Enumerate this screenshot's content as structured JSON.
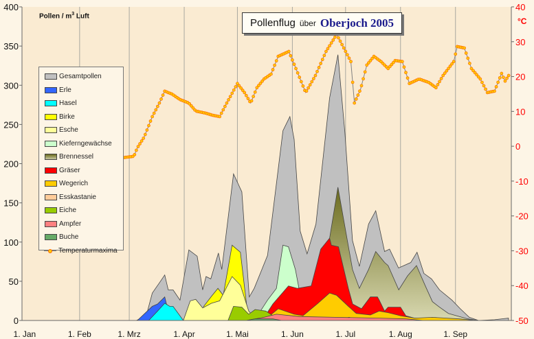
{
  "title": {
    "part1": "Pollenflug",
    "part2": "über",
    "part3": "Oberjoch 2005"
  },
  "chart_data": {
    "type": "area",
    "title": "Pollenflug über Oberjoch 2005",
    "ylabel_left": "Pollen / m3 Luft",
    "ylabel_right": "°C",
    "ylim_left": [
      0,
      400
    ],
    "ylim_right": [
      -50,
      40
    ],
    "yticks_left": [
      0,
      50,
      100,
      150,
      200,
      250,
      300,
      350,
      400
    ],
    "yticks_right": [
      -50,
      -40,
      -30,
      -20,
      -10,
      0,
      10,
      20,
      30,
      40
    ],
    "xlim_days": [
      -1.5,
      274.5
    ],
    "xticks": [
      {
        "label": "1. Jan",
        "day": 0
      },
      {
        "label": "1. Feb",
        "day": 31
      },
      {
        "label": "1. Mrz",
        "day": 59
      },
      {
        "label": "1. Apr",
        "day": 90
      },
      {
        "label": "1. Mai",
        "day": 120
      },
      {
        "label": "1. Jun",
        "day": 151
      },
      {
        "label": "1. Jul",
        "day": 181
      },
      {
        "label": "1. Aug",
        "day": 212
      },
      {
        "label": "1. Sep",
        "day": 243
      }
    ],
    "grid": "vertical at month starts",
    "legend_position": "left",
    "series": [
      {
        "name": "Gesamtpollen",
        "color": "#c0c0c0",
        "points": [
          [
            63,
            0
          ],
          [
            68.6,
            6
          ],
          [
            72,
            35
          ],
          [
            76,
            48
          ],
          [
            79,
            58
          ],
          [
            81,
            39
          ],
          [
            83.7,
            39
          ],
          [
            87.6,
            26
          ],
          [
            92.6,
            90
          ],
          [
            97.3,
            82
          ],
          [
            100.4,
            39
          ],
          [
            102.3,
            56
          ],
          [
            105,
            53
          ],
          [
            109.3,
            86
          ],
          [
            111.2,
            65
          ],
          [
            117.8,
            187
          ],
          [
            122.5,
            164
          ],
          [
            126.7,
            30
          ],
          [
            129.5,
            41
          ],
          [
            137,
            83
          ],
          [
            145.7,
            242
          ],
          [
            149.6,
            260
          ],
          [
            152,
            231
          ],
          [
            155.4,
            114
          ],
          [
            159.3,
            85
          ],
          [
            164.3,
            123
          ],
          [
            172,
            284
          ],
          [
            176.7,
            339
          ],
          [
            180.6,
            240
          ],
          [
            184.9,
            102
          ],
          [
            188.8,
            69
          ],
          [
            194,
            123
          ],
          [
            198,
            140
          ],
          [
            203,
            88
          ],
          [
            205.8,
            91
          ],
          [
            210.9,
            67
          ],
          [
            217.8,
            74
          ],
          [
            221.3,
            87
          ],
          [
            225.2,
            60
          ],
          [
            229.5,
            53
          ],
          [
            234,
            39
          ],
          [
            241,
            26
          ],
          [
            245.7,
            15
          ],
          [
            250.8,
            4
          ],
          [
            256,
            0
          ],
          [
            265,
            1
          ],
          [
            272.9,
            3
          ]
        ]
      },
      {
        "name": "Erle",
        "color": "#3366ff",
        "points": [
          [
            63.6,
            0
          ],
          [
            72,
            18
          ],
          [
            75,
            21
          ],
          [
            79,
            30
          ],
          [
            80,
            21
          ],
          [
            86,
            6
          ],
          [
            88.7,
            0
          ]
        ]
      },
      {
        "name": "Hasel",
        "color": "#00ffff",
        "points": [
          [
            70,
            0
          ],
          [
            75,
            12
          ],
          [
            79,
            22
          ],
          [
            81.8,
            18
          ],
          [
            83.7,
            18
          ],
          [
            89.5,
            0
          ]
        ]
      },
      {
        "name": "Birke",
        "color": "#ffff00",
        "points": [
          [
            99,
            0
          ],
          [
            101,
            18
          ],
          [
            105.4,
            31
          ],
          [
            109,
            41
          ],
          [
            112,
            32
          ],
          [
            117,
            96
          ],
          [
            121.7,
            87
          ],
          [
            125.6,
            12
          ],
          [
            128,
            0
          ]
        ]
      },
      {
        "name": "Esche",
        "color": "#ffff99",
        "points": [
          [
            89.5,
            0
          ],
          [
            93.4,
            25
          ],
          [
            96.5,
            27
          ],
          [
            100.4,
            16
          ],
          [
            105.4,
            22
          ],
          [
            110,
            25
          ],
          [
            117,
            56
          ],
          [
            121.7,
            45
          ],
          [
            126.4,
            12
          ],
          [
            131,
            0
          ]
        ]
      },
      {
        "name": "Kieferngewächse",
        "color": "#ccffcc",
        "points": [
          [
            128,
            0
          ],
          [
            133,
            12
          ],
          [
            137,
            26
          ],
          [
            142,
            41
          ],
          [
            145.7,
            96
          ],
          [
            148.8,
            94
          ],
          [
            152.7,
            65
          ],
          [
            154.7,
            41
          ],
          [
            156,
            5
          ],
          [
            158,
            0
          ]
        ]
      },
      {
        "name": "Brennessel",
        "color": "#808040",
        "points": [
          [
            160,
            0
          ],
          [
            168,
            30
          ],
          [
            172,
            105
          ],
          [
            176.7,
            170
          ],
          [
            180.6,
            120
          ],
          [
            184.9,
            65
          ],
          [
            188.8,
            41
          ],
          [
            194,
            65
          ],
          [
            198,
            88
          ],
          [
            203,
            74
          ],
          [
            205,
            70
          ],
          [
            211,
            39
          ],
          [
            216,
            57
          ],
          [
            221,
            70
          ],
          [
            226,
            44
          ],
          [
            230,
            24
          ],
          [
            234,
            17
          ],
          [
            239,
            9
          ],
          [
            250,
            2
          ],
          [
            256,
            0
          ]
        ]
      },
      {
        "name": "Gräser",
        "color": "#ff0000",
        "points": [
          [
            134,
            0
          ],
          [
            140,
            21
          ],
          [
            148.8,
            44
          ],
          [
            153.9,
            41
          ],
          [
            161.6,
            44
          ],
          [
            167,
            91
          ],
          [
            172,
            105
          ],
          [
            173,
            96
          ],
          [
            177,
            94
          ],
          [
            182.6,
            41
          ],
          [
            185,
            21
          ],
          [
            190,
            15
          ],
          [
            195,
            30
          ],
          [
            199,
            30
          ],
          [
            200,
            26
          ],
          [
            203,
            12
          ],
          [
            205,
            17
          ],
          [
            212,
            17
          ],
          [
            215,
            6
          ],
          [
            220,
            3
          ],
          [
            230,
            3
          ],
          [
            240,
            0
          ]
        ]
      },
      {
        "name": "Wegerich",
        "color": "#ffcc00",
        "points": [
          [
            135,
            0
          ],
          [
            143,
            15
          ],
          [
            152,
            8
          ],
          [
            157,
            6
          ],
          [
            165,
            21
          ],
          [
            172,
            35
          ],
          [
            176,
            32
          ],
          [
            182.6,
            18
          ],
          [
            187,
            9
          ],
          [
            195,
            7
          ],
          [
            200,
            12
          ],
          [
            205,
            10
          ],
          [
            212,
            6
          ],
          [
            220,
            3
          ],
          [
            230,
            4
          ],
          [
            245,
            2
          ],
          [
            255,
            0
          ]
        ]
      },
      {
        "name": "Esskastanie",
        "color": "#ffcc99",
        "points": [
          [
            175,
            0
          ],
          [
            183,
            4
          ],
          [
            190,
            0
          ]
        ]
      },
      {
        "name": "Eiche",
        "color": "#99cc00",
        "points": [
          [
            114.7,
            0
          ],
          [
            117.8,
            18
          ],
          [
            122.5,
            17
          ],
          [
            126.4,
            8
          ],
          [
            130,
            14
          ],
          [
            136,
            12
          ],
          [
            140,
            6
          ],
          [
            144,
            0
          ]
        ]
      },
      {
        "name": "Ampfer",
        "color": "#ff8080",
        "points": [
          [
            125,
            0
          ],
          [
            135,
            4
          ],
          [
            142,
            8
          ],
          [
            155,
            5
          ],
          [
            175,
            4
          ],
          [
            200,
            3
          ],
          [
            215,
            2
          ],
          [
            225,
            0
          ]
        ]
      },
      {
        "name": "Buche",
        "color": "#66aa66",
        "points": [
          [
            125,
            0
          ],
          [
            130,
            2
          ],
          [
            140,
            2
          ],
          [
            145,
            0
          ]
        ]
      }
    ],
    "temperature": {
      "name": "Temperaturmaxima",
      "color": "#808080",
      "marker_color": "#ffcc00",
      "points": [
        [
          55,
          -3.3
        ],
        [
          61.6,
          -2.9
        ],
        [
          63.6,
          -0.4
        ],
        [
          67.4,
          2.6
        ],
        [
          72,
          8.5
        ],
        [
          76,
          12.4
        ],
        [
          79,
          15.8
        ],
        [
          83,
          15
        ],
        [
          87.6,
          13.4
        ],
        [
          92.6,
          12.4
        ],
        [
          96.5,
          10.1
        ],
        [
          102,
          9.5
        ],
        [
          106,
          8.9
        ],
        [
          110,
          8.5
        ],
        [
          114,
          12.4
        ],
        [
          120,
          18
        ],
        [
          124,
          15.4
        ],
        [
          127.5,
          12.4
        ],
        [
          131,
          16.8
        ],
        [
          135,
          19.3
        ],
        [
          139,
          20.7
        ],
        [
          143,
          25.8
        ],
        [
          149,
          27.2
        ],
        [
          153,
          22.3
        ],
        [
          158.5,
          15.4
        ],
        [
          164,
          20.3
        ],
        [
          170,
          27.2
        ],
        [
          176,
          32.1
        ],
        [
          180,
          28.2
        ],
        [
          184,
          24.3
        ],
        [
          186,
          12.4
        ],
        [
          189.5,
          16.4
        ],
        [
          193,
          23.3
        ],
        [
          197,
          25.8
        ],
        [
          201,
          24.3
        ],
        [
          205,
          22.3
        ],
        [
          209,
          24.6
        ],
        [
          213,
          24.3
        ],
        [
          217,
          18
        ],
        [
          222.5,
          19.3
        ],
        [
          228,
          18.3
        ],
        [
          232,
          16.8
        ],
        [
          236,
          20.3
        ],
        [
          242,
          24.3
        ],
        [
          244,
          28.6
        ],
        [
          248,
          28.2
        ],
        [
          252,
          22.3
        ],
        [
          257,
          19.3
        ],
        [
          261,
          15.4
        ],
        [
          265,
          15.8
        ],
        [
          269,
          20.9
        ],
        [
          271,
          18.7
        ],
        [
          273,
          20.3
        ]
      ]
    }
  },
  "legend": [
    "Gesamtpollen",
    "Erle",
    "Hasel",
    "Birke",
    "Esche",
    "Kieferngewächse",
    "Brennessel",
    "Gräser",
    "Wegerich",
    "Esskastanie",
    "Eiche",
    "Ampfer",
    "Buche",
    "Temperaturmaxima"
  ],
  "labels": {
    "yaxis_left_prefix": "Pollen / m",
    "yaxis_left_sup": "3",
    "yaxis_left_suffix": " Luft",
    "yaxis_right": "°C"
  }
}
